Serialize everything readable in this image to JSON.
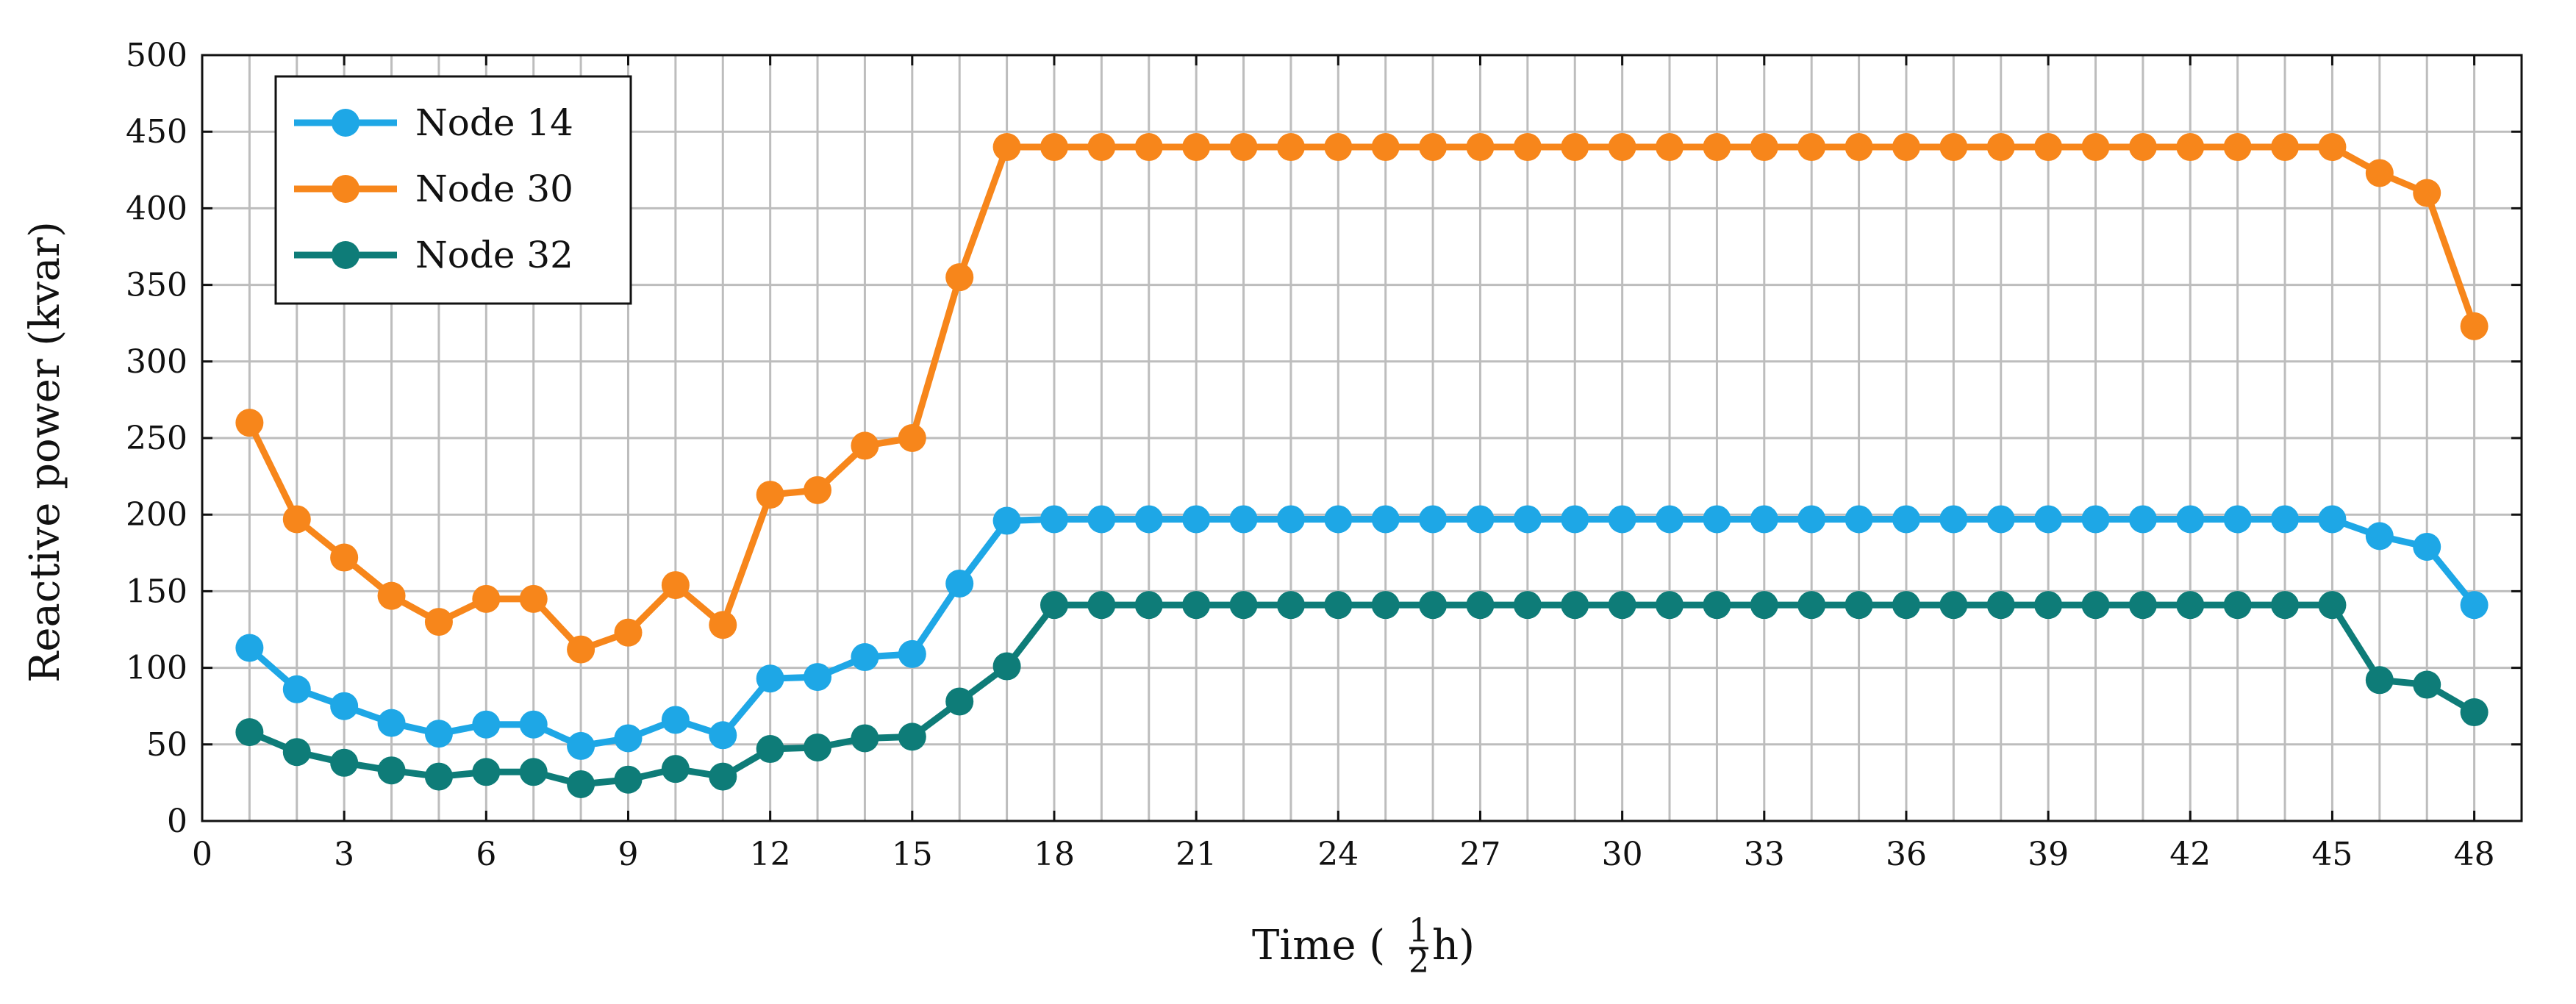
{
  "chart_data": {
    "type": "line",
    "title": "",
    "xlabel": "Time (",
    "xlabel_fraction_numerator": "1",
    "xlabel_fraction_denominator": "2",
    "xlabel_suffix": "h)",
    "ylabel": "Reactive power (kvar)",
    "xlim": [
      0,
      49
    ],
    "ylim": [
      0,
      500
    ],
    "xticks": [
      0,
      3,
      6,
      9,
      12,
      15,
      18,
      21,
      24,
      27,
      30,
      33,
      36,
      39,
      42,
      45,
      48
    ],
    "yticks": [
      0,
      50,
      100,
      150,
      200,
      250,
      300,
      350,
      400,
      450,
      500
    ],
    "grid": true,
    "legend_position": "top-left",
    "x": [
      1,
      2,
      3,
      4,
      5,
      6,
      7,
      8,
      9,
      10,
      11,
      12,
      13,
      14,
      15,
      16,
      17,
      18,
      19,
      20,
      21,
      22,
      23,
      24,
      25,
      26,
      27,
      28,
      29,
      30,
      31,
      32,
      33,
      34,
      35,
      36,
      37,
      38,
      39,
      40,
      41,
      42,
      43,
      44,
      45,
      46,
      47,
      48
    ],
    "series": [
      {
        "name": "Node 14",
        "color": "#1ea7e6",
        "values": [
          113,
          86,
          75,
          64,
          57,
          63,
          63,
          49,
          54,
          66,
          56,
          93,
          94,
          107,
          109,
          155,
          196,
          197,
          197,
          197,
          197,
          197,
          197,
          197,
          197,
          197,
          197,
          197,
          197,
          197,
          197,
          197,
          197,
          197,
          197,
          197,
          197,
          197,
          197,
          197,
          197,
          197,
          197,
          197,
          197,
          186,
          179,
          141
        ]
      },
      {
        "name": "Node 30",
        "color": "#f7861b",
        "values": [
          260,
          197,
          172,
          147,
          130,
          145,
          145,
          112,
          123,
          154,
          128,
          213,
          216,
          245,
          250,
          355,
          440,
          440,
          440,
          440,
          440,
          440,
          440,
          440,
          440,
          440,
          440,
          440,
          440,
          440,
          440,
          440,
          440,
          440,
          440,
          440,
          440,
          440,
          440,
          440,
          440,
          440,
          440,
          440,
          440,
          423,
          410,
          323
        ]
      },
      {
        "name": "Node 32",
        "color": "#0e7c78",
        "values": [
          58,
          45,
          38,
          33,
          29,
          32,
          32,
          24,
          27,
          34,
          29,
          47,
          48,
          54,
          55,
          78,
          101,
          141,
          141,
          141,
          141,
          141,
          141,
          141,
          141,
          141,
          141,
          141,
          141,
          141,
          141,
          141,
          141,
          141,
          141,
          141,
          141,
          141,
          141,
          141,
          141,
          141,
          141,
          141,
          141,
          92,
          89,
          71
        ]
      }
    ]
  }
}
